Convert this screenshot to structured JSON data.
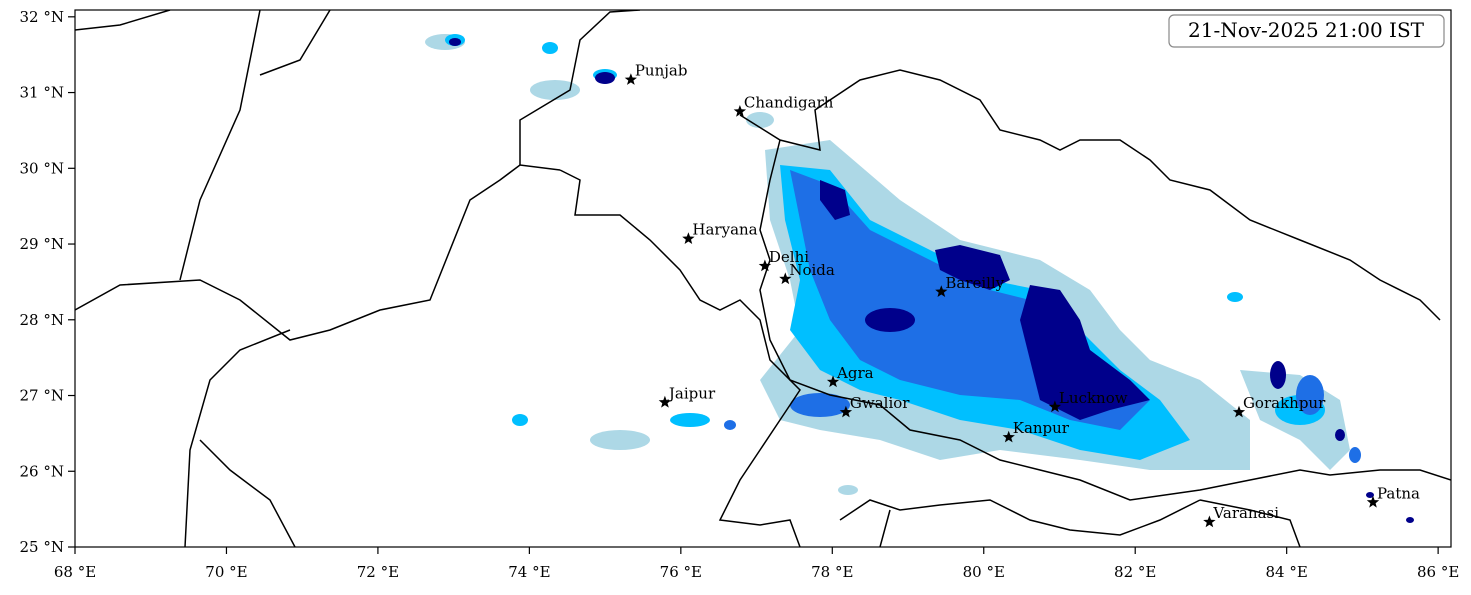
{
  "map": {
    "title": "21-Nov-2025 21:00 IST",
    "xlim": [
      68,
      86.17
    ],
    "ylim": [
      25,
      32.09
    ],
    "xticks": [
      {
        "value": 68,
        "label": "68 °E"
      },
      {
        "value": 70,
        "label": "70 °E"
      },
      {
        "value": 72,
        "label": "72 °E"
      },
      {
        "value": 74,
        "label": "74 °E"
      },
      {
        "value": 76,
        "label": "76 °E"
      },
      {
        "value": 78,
        "label": "78 °E"
      },
      {
        "value": 80,
        "label": "80 °E"
      },
      {
        "value": 82,
        "label": "82 °E"
      },
      {
        "value": 84,
        "label": "84 °E"
      },
      {
        "value": 86,
        "label": "86 °E"
      }
    ],
    "yticks": [
      {
        "value": 25,
        "label": "25 °N"
      },
      {
        "value": 26,
        "label": "26 °N"
      },
      {
        "value": 27,
        "label": "27 °N"
      },
      {
        "value": 28,
        "label": "28 °N"
      },
      {
        "value": 29,
        "label": "29 °N"
      },
      {
        "value": 30,
        "label": "30 °N"
      },
      {
        "value": 31,
        "label": "31 °N"
      },
      {
        "value": 32,
        "label": "32 °N"
      }
    ],
    "cities": [
      {
        "name": "Punjab",
        "lon": 75.34,
        "lat": 31.17
      },
      {
        "name": "Chandigarh",
        "lon": 76.78,
        "lat": 30.75
      },
      {
        "name": "Haryana",
        "lon": 76.1,
        "lat": 29.07
      },
      {
        "name": "Delhi",
        "lon": 77.11,
        "lat": 28.71
      },
      {
        "name": "Noida",
        "lon": 77.38,
        "lat": 28.54
      },
      {
        "name": "Bareilly",
        "lon": 79.44,
        "lat": 28.37
      },
      {
        "name": "Agra",
        "lon": 78.01,
        "lat": 27.18
      },
      {
        "name": "Jaipur",
        "lon": 75.79,
        "lat": 26.91
      },
      {
        "name": "Gwalior",
        "lon": 78.18,
        "lat": 26.78
      },
      {
        "name": "Lucknow",
        "lon": 80.94,
        "lat": 26.85
      },
      {
        "name": "Kanpur",
        "lon": 80.33,
        "lat": 26.45
      },
      {
        "name": "Gorakhpur",
        "lon": 83.37,
        "lat": 26.78
      },
      {
        "name": "Varanasi",
        "lon": 82.98,
        "lat": 25.33
      },
      {
        "name": "Patna",
        "lon": 85.14,
        "lat": 25.59
      }
    ]
  }
}
